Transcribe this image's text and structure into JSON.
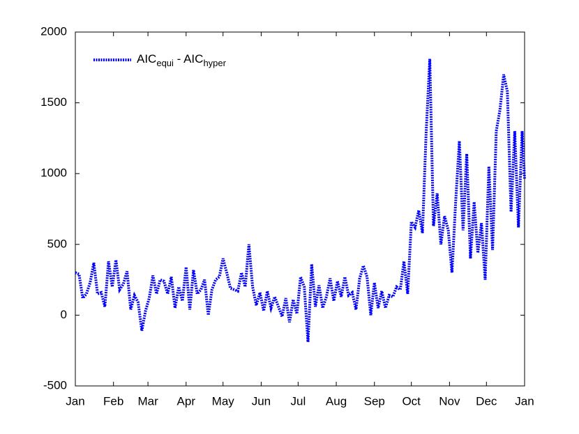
{
  "chart_data": {
    "type": "line",
    "x": [
      0,
      3,
      6,
      9,
      12,
      15,
      18,
      21,
      24,
      27,
      30,
      33,
      36,
      39,
      42,
      45,
      48,
      51,
      54,
      57,
      60,
      63,
      66,
      69,
      72,
      75,
      78,
      81,
      84,
      87,
      90,
      93,
      96,
      99,
      102,
      105,
      108,
      111,
      114,
      117,
      120,
      123,
      126,
      129,
      132,
      135,
      138,
      141,
      144,
      147,
      150,
      153,
      156,
      159,
      162,
      165,
      168,
      171,
      174,
      177,
      180,
      183,
      186,
      189,
      192,
      195,
      198,
      201,
      204,
      207,
      210,
      213,
      216,
      219,
      222,
      225,
      228,
      231,
      234,
      237,
      240,
      243,
      246,
      249,
      252,
      255,
      258,
      261,
      264,
      267,
      270,
      273,
      276,
      279,
      282,
      285,
      288,
      291,
      294,
      297,
      300,
      303,
      306,
      309,
      312,
      315,
      318,
      321,
      324,
      327,
      330,
      333,
      336,
      339,
      342,
      345,
      348,
      351,
      354,
      357,
      360,
      363,
      365
    ],
    "series": [
      {
        "name": [
          "AIC",
          "equi",
          " - AIC",
          "hyper"
        ],
        "color": "#0000ff",
        "values": [
          300,
          290,
          120,
          150,
          230,
          370,
          150,
          160,
          60,
          380,
          200,
          390,
          180,
          220,
          310,
          40,
          140,
          90,
          -110,
          30,
          120,
          280,
          150,
          250,
          240,
          150,
          270,
          50,
          200,
          100,
          340,
          40,
          320,
          150,
          180,
          250,
          0,
          180,
          250,
          270,
          400,
          300,
          190,
          180,
          170,
          300,
          200,
          500,
          200,
          70,
          160,
          30,
          170,
          50,
          130,
          60,
          -10,
          120,
          -50,
          110,
          10,
          270,
          200,
          -190,
          360,
          60,
          210,
          50,
          130,
          260,
          100,
          240,
          130,
          270,
          140,
          160,
          40,
          260,
          350,
          270,
          0,
          230,
          50,
          170,
          50,
          140,
          130,
          200,
          180,
          380,
          150,
          660,
          620,
          740,
          580,
          1280,
          1810,
          630,
          860,
          500,
          700,
          600,
          300,
          800,
          1230,
          600,
          1140,
          400,
          800,
          440,
          650,
          250,
          1050,
          460,
          1300,
          1450,
          1700,
          1580,
          730,
          1300,
          620,
          1300,
          960
        ]
      }
    ],
    "xlim": [
      0,
      365
    ],
    "xticks": [
      {
        "value": 0,
        "label": "Jan"
      },
      {
        "value": 31,
        "label": "Feb"
      },
      {
        "value": 59,
        "label": "Mar"
      },
      {
        "value": 90,
        "label": "Apr"
      },
      {
        "value": 120,
        "label": "May"
      },
      {
        "value": 151,
        "label": "Jun"
      },
      {
        "value": 181,
        "label": "Jul"
      },
      {
        "value": 212,
        "label": "Aug"
      },
      {
        "value": 243,
        "label": "Sep"
      },
      {
        "value": 273,
        "label": "Oct"
      },
      {
        "value": 304,
        "label": "Nov"
      },
      {
        "value": 334,
        "label": "Dec"
      },
      {
        "value": 365,
        "label": "Jan"
      }
    ],
    "ylim": [
      -500,
      2000
    ],
    "yticks": [
      -500,
      0,
      500,
      1000,
      1500,
      2000
    ],
    "legend": "upper left"
  }
}
